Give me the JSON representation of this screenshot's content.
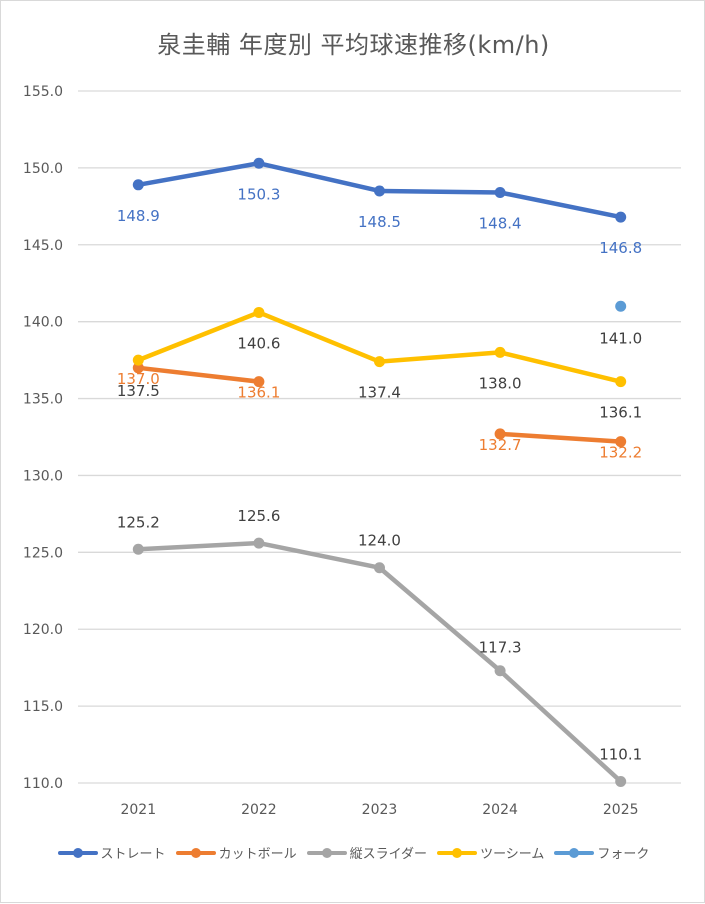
{
  "chart_data": {
    "type": "line",
    "title": "泉圭輔 年度別 平均球速推移(km/h)",
    "xlabel": "",
    "ylabel": "",
    "categories": [
      "2021",
      "2022",
      "2023",
      "2024",
      "2025"
    ],
    "ylim": [
      110.0,
      155.0
    ],
    "yticks": [
      "155.0",
      "150.0",
      "145.0",
      "140.0",
      "135.0",
      "130.0",
      "125.0",
      "120.0",
      "115.0",
      "110.0"
    ],
    "grid": true,
    "legend_position": "bottom",
    "series": [
      {
        "name": "ストレート",
        "color": "#4472C4",
        "label_color": "#4472C4",
        "label_pos": "below",
        "values": [
          148.9,
          150.3,
          148.5,
          148.4,
          146.8
        ]
      },
      {
        "name": "カットボール",
        "color": "#ED7D31",
        "label_color": "#ED7D31",
        "label_pos": "below",
        "values": [
          137.0,
          136.1,
          null,
          132.7,
          132.2
        ]
      },
      {
        "name": "縦スライダー",
        "color": "#A5A5A5",
        "label_color": "#404040",
        "label_pos": "above",
        "values": [
          125.2,
          125.6,
          124.0,
          117.3,
          110.1
        ]
      },
      {
        "name": "ツーシーム",
        "color": "#FFC000",
        "label_color": "#404040",
        "label_pos": "below",
        "values": [
          137.5,
          140.6,
          137.4,
          138.0,
          136.1
        ]
      },
      {
        "name": "フォーク",
        "color": "#5B9BD5",
        "label_color": "#404040",
        "label_pos": "below",
        "values": [
          null,
          null,
          null,
          null,
          141.0
        ]
      }
    ]
  }
}
